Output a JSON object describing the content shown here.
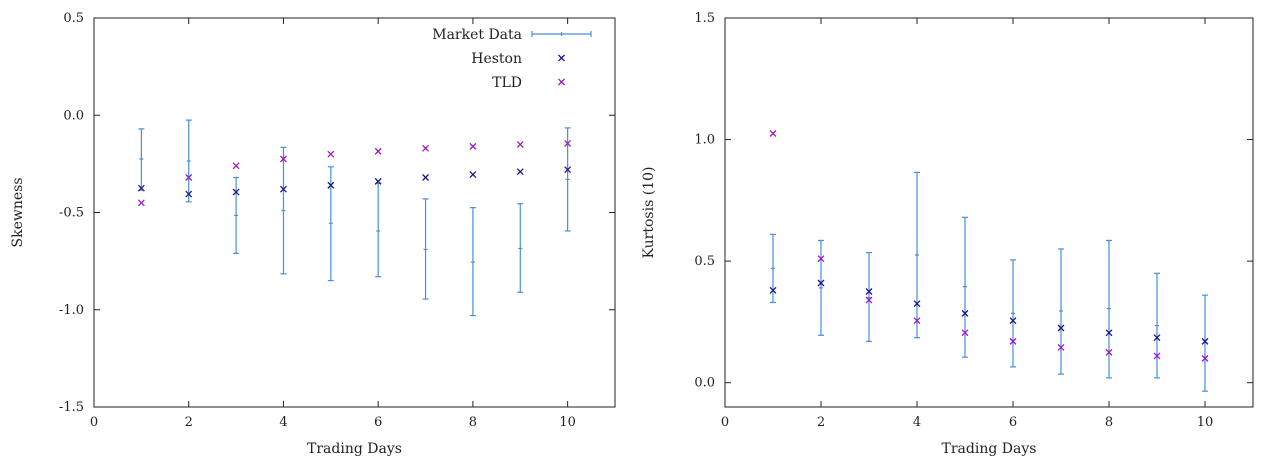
{
  "colors": {
    "market": "#4a8fd8",
    "heston": "#1b1a8c",
    "tld": "#9b1cc2",
    "axis": "#222222",
    "background": "#ffffff"
  },
  "chart_data": [
    {
      "type": "scatter",
      "xlabel": "Trading Days",
      "ylabel": "Skewness",
      "xlim": [
        0,
        11
      ],
      "ylim": [
        -1.5,
        0.5
      ],
      "xticks": [
        0,
        2,
        4,
        6,
        8,
        10
      ],
      "xtick_labels": [
        "0",
        "2",
        "4",
        "6",
        "8",
        "10"
      ],
      "yticks": [
        -1.5,
        -1.0,
        -0.5,
        0.0,
        0.5
      ],
      "ytick_labels": [
        "-1.5",
        "-1.0",
        "-0.5",
        "0.0",
        "0.5"
      ],
      "grid": false,
      "legend": {
        "position": "top-right",
        "entries": [
          {
            "label": "Market Data",
            "marker": "errorbar"
          },
          {
            "label": "Heston",
            "marker": "x"
          },
          {
            "label": "TLD",
            "marker": "x"
          }
        ]
      },
      "series": [
        {
          "name": "Market Data",
          "marker": "errorbar",
          "x": [
            1,
            2,
            3,
            4,
            5,
            6,
            7,
            8,
            9,
            10
          ],
          "y": [
            -0.225,
            -0.235,
            -0.515,
            -0.49,
            -0.555,
            -0.595,
            -0.69,
            -0.755,
            -0.685,
            -0.33
          ],
          "ylow": [
            -0.385,
            -0.445,
            -0.71,
            -0.815,
            -0.85,
            -0.83,
            -0.945,
            -1.03,
            -0.91,
            -0.595
          ],
          "yhigh": [
            -0.07,
            -0.025,
            -0.32,
            -0.165,
            -0.265,
            -0.35,
            -0.43,
            -0.475,
            -0.455,
            -0.065
          ]
        },
        {
          "name": "Heston",
          "marker": "x",
          "x": [
            1,
            2,
            3,
            4,
            5,
            6,
            7,
            8,
            9,
            10
          ],
          "y": [
            -0.375,
            -0.405,
            -0.395,
            -0.38,
            -0.36,
            -0.34,
            -0.32,
            -0.305,
            -0.29,
            -0.28
          ]
        },
        {
          "name": "TLD",
          "marker": "x",
          "x": [
            1,
            2,
            3,
            4,
            5,
            6,
            7,
            8,
            9,
            10
          ],
          "y": [
            -0.45,
            -0.32,
            -0.26,
            -0.225,
            -0.2,
            -0.185,
            -0.17,
            -0.16,
            -0.15,
            -0.145
          ]
        }
      ]
    },
    {
      "type": "scatter",
      "xlabel": "Trading Days",
      "ylabel": "Kurtosis (10)",
      "xlim": [
        0,
        11
      ],
      "ylim": [
        -0.1,
        1.5
      ],
      "xticks": [
        0,
        2,
        4,
        6,
        8,
        10
      ],
      "xtick_labels": [
        "0",
        "2",
        "4",
        "6",
        "8",
        "10"
      ],
      "yticks": [
        0.0,
        0.5,
        1.0,
        1.5
      ],
      "ytick_labels": [
        "0.0",
        "0.5",
        "1.0",
        "1.5"
      ],
      "grid": false,
      "series": [
        {
          "marker": "errorbar",
          "x": [
            1,
            2,
            3,
            4,
            5,
            6,
            7,
            8,
            9,
            10
          ],
          "y": [
            0.47,
            0.39,
            0.35,
            0.525,
            0.395,
            0.285,
            0.295,
            0.305,
            0.235,
            0.165
          ],
          "ylow": [
            0.33,
            0.195,
            0.17,
            0.185,
            0.105,
            0.065,
            0.035,
            0.02,
            0.02,
            -0.035
          ],
          "yhigh": [
            0.61,
            0.585,
            0.535,
            0.865,
            0.68,
            0.505,
            0.55,
            0.585,
            0.45,
            0.36
          ]
        },
        {
          "marker": "x",
          "x": [
            1,
            2,
            3,
            4,
            5,
            6,
            7,
            8,
            9,
            10
          ],
          "y": [
            0.38,
            0.41,
            0.375,
            0.325,
            0.285,
            0.255,
            0.225,
            0.205,
            0.185,
            0.17
          ]
        },
        {
          "marker": "x",
          "x": [
            1,
            2,
            3,
            4,
            5,
            6,
            7,
            8,
            9,
            10
          ],
          "y": [
            1.025,
            0.51,
            0.34,
            0.255,
            0.205,
            0.17,
            0.145,
            0.125,
            0.11,
            0.1
          ]
        }
      ]
    }
  ]
}
